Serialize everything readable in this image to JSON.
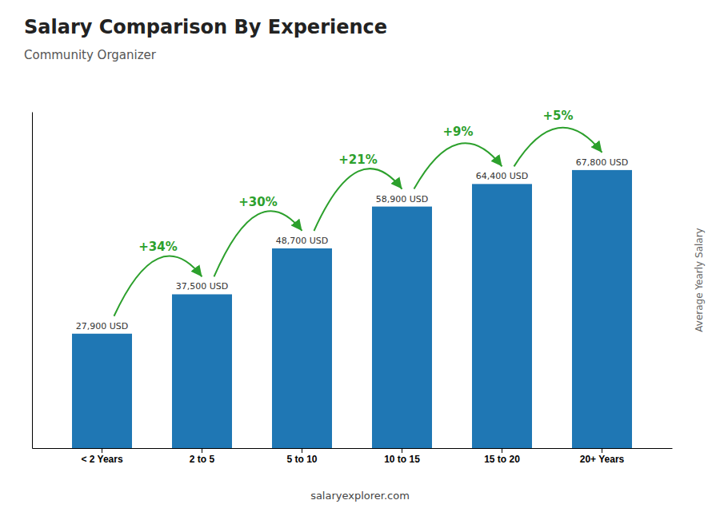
{
  "chart_data": {
    "type": "bar",
    "title": "Salary Comparison By Experience",
    "subtitle": "Community Organizer",
    "ylabel": "Average Yearly Salary",
    "footer": "salaryexplorer.com",
    "categories": [
      "< 2 Years",
      "2 to 5",
      "5 to 10",
      "10 to 15",
      "15 to 20",
      "20+ Years"
    ],
    "values": [
      27900,
      37500,
      48700,
      58900,
      64400,
      67800
    ],
    "value_labels": [
      "27,900 USD",
      "37,500 USD",
      "48,700 USD",
      "58,900 USD",
      "64,400 USD",
      "67,800 USD"
    ],
    "data_labels": true,
    "annotations": [
      "+34%",
      "+30%",
      "+21%",
      "+9%",
      "+5%"
    ],
    "ylim": [
      0,
      82000
    ],
    "tick_labels": "x",
    "grid": false
  }
}
